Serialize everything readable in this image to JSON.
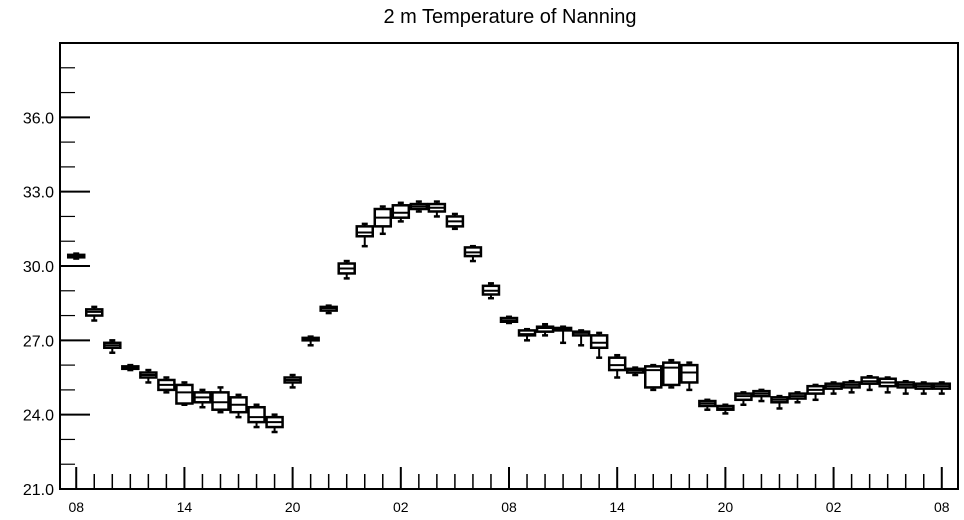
{
  "chart_data": {
    "type": "boxplot",
    "title": "2 m Temperature of Nanning",
    "xlabel": "",
    "ylabel": "",
    "ylim": [
      21.0,
      39.0
    ],
    "y_ticks": [
      "21.0",
      "24.0",
      "27.0",
      "30.0",
      "33.0",
      "36.0"
    ],
    "x_tick_labels": [
      "08",
      "14",
      "20",
      "02",
      "08",
      "14",
      "20",
      "02",
      "08"
    ],
    "x_tick_positions": [
      0,
      6,
      12,
      18,
      24,
      30,
      36,
      42,
      48
    ],
    "x_range": [
      -0.9,
      48.9
    ],
    "grid": false,
    "legend": "none",
    "boxes": [
      {
        "x": 0,
        "min": 30.3,
        "q1": 30.35,
        "median": 30.4,
        "q3": 30.45,
        "max": 30.5
      },
      {
        "x": 1,
        "min": 27.8,
        "q1": 28.0,
        "median": 28.15,
        "q3": 28.25,
        "max": 28.35
      },
      {
        "x": 2,
        "min": 26.5,
        "q1": 26.7,
        "median": 26.8,
        "q3": 26.9,
        "max": 27.0
      },
      {
        "x": 3,
        "min": 25.8,
        "q1": 25.85,
        "median": 25.9,
        "q3": 25.95,
        "max": 26.0
      },
      {
        "x": 4,
        "min": 25.3,
        "q1": 25.5,
        "median": 25.6,
        "q3": 25.7,
        "max": 25.8
      },
      {
        "x": 5,
        "min": 24.9,
        "q1": 25.0,
        "median": 25.2,
        "q3": 25.4,
        "max": 25.5
      },
      {
        "x": 6,
        "min": 24.4,
        "q1": 24.45,
        "median": 24.9,
        "q3": 25.2,
        "max": 25.3
      },
      {
        "x": 7,
        "min": 24.3,
        "q1": 24.5,
        "median": 24.7,
        "q3": 24.9,
        "max": 25.0
      },
      {
        "x": 8,
        "min": 24.1,
        "q1": 24.2,
        "median": 24.5,
        "q3": 24.9,
        "max": 25.1
      },
      {
        "x": 9,
        "min": 23.9,
        "q1": 24.1,
        "median": 24.4,
        "q3": 24.7,
        "max": 24.8
      },
      {
        "x": 10,
        "min": 23.5,
        "q1": 23.7,
        "median": 23.9,
        "q3": 24.3,
        "max": 24.4
      },
      {
        "x": 11,
        "min": 23.3,
        "q1": 23.5,
        "median": 23.7,
        "q3": 23.9,
        "max": 24.0
      },
      {
        "x": 12,
        "min": 25.1,
        "q1": 25.3,
        "median": 25.4,
        "q3": 25.5,
        "max": 25.6
      },
      {
        "x": 13,
        "min": 26.8,
        "q1": 27.0,
        "median": 27.05,
        "q3": 27.1,
        "max": 27.15
      },
      {
        "x": 14,
        "min": 28.1,
        "q1": 28.2,
        "median": 28.3,
        "q3": 28.35,
        "max": 28.4
      },
      {
        "x": 15,
        "min": 29.5,
        "q1": 29.7,
        "median": 29.9,
        "q3": 30.1,
        "max": 30.2
      },
      {
        "x": 16,
        "min": 30.8,
        "q1": 31.2,
        "median": 31.35,
        "q3": 31.6,
        "max": 31.7
      },
      {
        "x": 17,
        "min": 31.3,
        "q1": 31.6,
        "median": 31.95,
        "q3": 32.3,
        "max": 32.4
      },
      {
        "x": 18,
        "min": 31.8,
        "q1": 31.95,
        "median": 32.15,
        "q3": 32.45,
        "max": 32.55
      },
      {
        "x": 19,
        "min": 32.2,
        "q1": 32.3,
        "median": 32.4,
        "q3": 32.5,
        "max": 32.6
      },
      {
        "x": 20,
        "min": 32.0,
        "q1": 32.2,
        "median": 32.35,
        "q3": 32.5,
        "max": 32.6
      },
      {
        "x": 21,
        "min": 31.5,
        "q1": 31.6,
        "median": 31.8,
        "q3": 32.0,
        "max": 32.1
      },
      {
        "x": 22,
        "min": 30.2,
        "q1": 30.4,
        "median": 30.55,
        "q3": 30.75,
        "max": 30.8
      },
      {
        "x": 23,
        "min": 28.7,
        "q1": 28.85,
        "median": 29.0,
        "q3": 29.2,
        "max": 29.3
      },
      {
        "x": 24,
        "min": 27.7,
        "q1": 27.75,
        "median": 27.8,
        "q3": 27.9,
        "max": 27.95
      },
      {
        "x": 25,
        "min": 27.0,
        "q1": 27.2,
        "median": 27.25,
        "q3": 27.4,
        "max": 27.45
      },
      {
        "x": 26,
        "min": 27.2,
        "q1": 27.35,
        "median": 27.5,
        "q3": 27.55,
        "max": 27.65
      },
      {
        "x": 27,
        "min": 26.9,
        "q1": 27.4,
        "median": 27.45,
        "q3": 27.5,
        "max": 27.55
      },
      {
        "x": 28,
        "min": 26.8,
        "q1": 27.2,
        "median": 27.3,
        "q3": 27.35,
        "max": 27.4
      },
      {
        "x": 29,
        "min": 26.3,
        "q1": 26.7,
        "median": 26.9,
        "q3": 27.2,
        "max": 27.3
      },
      {
        "x": 30,
        "min": 25.5,
        "q1": 25.8,
        "median": 26.0,
        "q3": 26.3,
        "max": 26.4
      },
      {
        "x": 31,
        "min": 25.6,
        "q1": 25.7,
        "median": 25.8,
        "q3": 25.85,
        "max": 25.9
      },
      {
        "x": 32,
        "min": 25.0,
        "q1": 25.1,
        "median": 25.8,
        "q3": 25.95,
        "max": 26.0
      },
      {
        "x": 33,
        "min": 25.1,
        "q1": 25.2,
        "median": 25.9,
        "q3": 26.1,
        "max": 26.2
      },
      {
        "x": 34,
        "min": 25.0,
        "q1": 25.3,
        "median": 25.7,
        "q3": 26.0,
        "max": 26.1
      },
      {
        "x": 35,
        "min": 24.2,
        "q1": 24.35,
        "median": 24.45,
        "q3": 24.55,
        "max": 24.6
      },
      {
        "x": 36,
        "min": 24.05,
        "q1": 24.2,
        "median": 24.25,
        "q3": 24.35,
        "max": 24.4
      },
      {
        "x": 37,
        "min": 24.4,
        "q1": 24.6,
        "median": 24.75,
        "q3": 24.85,
        "max": 24.9
      },
      {
        "x": 38,
        "min": 24.55,
        "q1": 24.75,
        "median": 24.85,
        "q3": 24.95,
        "max": 25.0
      },
      {
        "x": 39,
        "min": 24.25,
        "q1": 24.5,
        "median": 24.6,
        "q3": 24.7,
        "max": 24.75
      },
      {
        "x": 40,
        "min": 24.5,
        "q1": 24.65,
        "median": 24.75,
        "q3": 24.85,
        "max": 24.9
      },
      {
        "x": 41,
        "min": 24.6,
        "q1": 24.85,
        "median": 25.0,
        "q3": 25.15,
        "max": 25.2
      },
      {
        "x": 42,
        "min": 24.85,
        "q1": 25.05,
        "median": 25.15,
        "q3": 25.25,
        "max": 25.3
      },
      {
        "x": 43,
        "min": 24.9,
        "q1": 25.1,
        "median": 25.2,
        "q3": 25.3,
        "max": 25.35
      },
      {
        "x": 44,
        "min": 25.0,
        "q1": 25.25,
        "median": 25.35,
        "q3": 25.5,
        "max": 25.55
      },
      {
        "x": 45,
        "min": 24.9,
        "q1": 25.15,
        "median": 25.3,
        "q3": 25.45,
        "max": 25.5
      },
      {
        "x": 46,
        "min": 24.85,
        "q1": 25.1,
        "median": 25.2,
        "q3": 25.3,
        "max": 25.35
      },
      {
        "x": 47,
        "min": 24.85,
        "q1": 25.05,
        "median": 25.15,
        "q3": 25.25,
        "max": 25.3
      },
      {
        "x": 48,
        "min": 24.85,
        "q1": 25.05,
        "median": 25.15,
        "q3": 25.25,
        "max": 25.3
      }
    ]
  }
}
